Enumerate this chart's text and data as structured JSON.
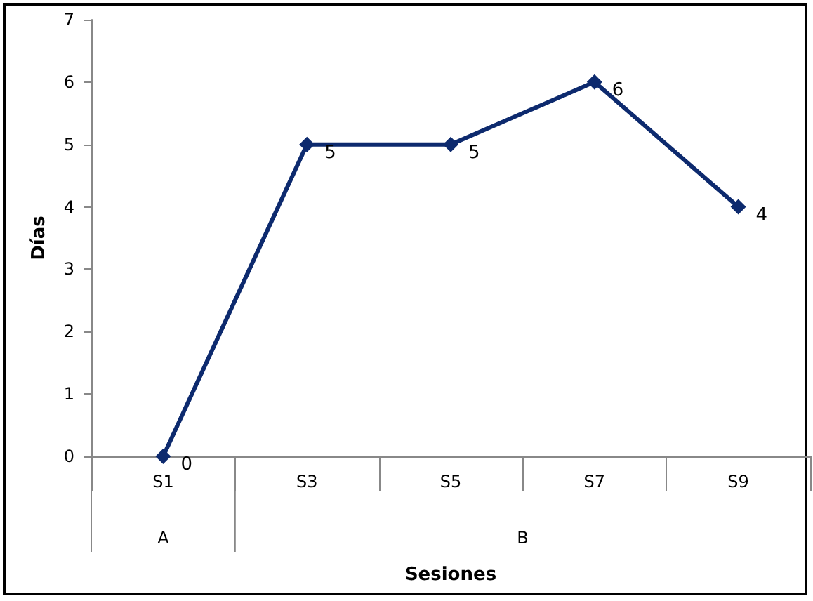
{
  "chart_data": {
    "type": "line",
    "xlabel": "Sesiones",
    "ylabel": "Días",
    "categories": [
      "S1",
      "S3",
      "S5",
      "S7",
      "S9"
    ],
    "series": [
      {
        "color": "#0d2a6e",
        "values": [
          0,
          5,
          5,
          6,
          4
        ]
      }
    ],
    "ylim": [
      0,
      7
    ],
    "yticks": [
      0,
      1,
      2,
      3,
      4,
      5,
      6,
      7
    ],
    "annotations": [
      "A",
      "B"
    ],
    "data_labels": true,
    "marker": "diamond",
    "line_style": "solid",
    "grid": false
  }
}
